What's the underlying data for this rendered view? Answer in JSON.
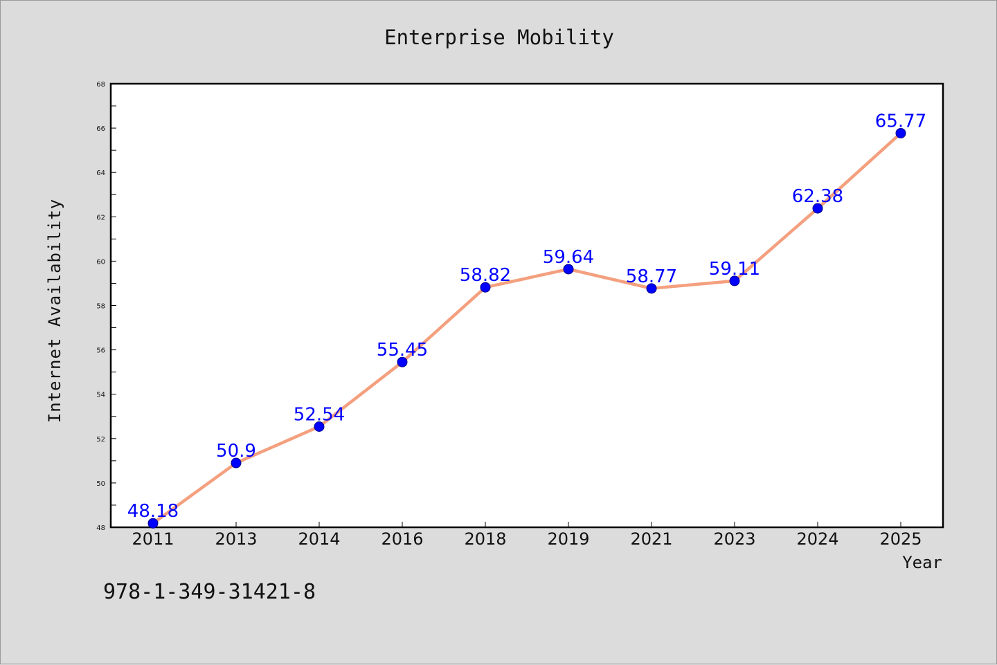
{
  "chart_data": {
    "type": "line",
    "title": "Enterprise Mobility",
    "xlabel": "Year",
    "ylabel": "Internet Availability",
    "categories": [
      "2011",
      "2013",
      "2014",
      "2016",
      "2018",
      "2019",
      "2021",
      "2023",
      "2024",
      "2025"
    ],
    "series": [
      {
        "values": [
          48.18,
          50.9,
          52.54,
          55.45,
          58.82,
          59.64,
          58.77,
          59.11,
          62.38,
          65.77
        ],
        "line_color": "#f4a07f",
        "marker_color": "#0000ff"
      }
    ],
    "data_labels": [
      "48.18",
      "50.9",
      "52.54",
      "55.45",
      "58.82",
      "59.64",
      "58.77",
      "59.11",
      "62.38",
      "65.77"
    ],
    "ylim": [
      48,
      68
    ],
    "yticks": [
      48,
      50,
      52,
      54,
      56,
      58,
      60,
      62,
      64,
      66,
      68
    ],
    "ytick_labels": [
      "48",
      "50",
      "52",
      "54",
      "56",
      "58",
      "60",
      "62",
      "64",
      "66",
      "68"
    ],
    "grid": false,
    "background_color": "#dcdcdc",
    "plot_background_color": "#ffffff",
    "data_label_color": "#0000ff"
  },
  "footer": {
    "isbn": "978-1-349-31421-8"
  }
}
